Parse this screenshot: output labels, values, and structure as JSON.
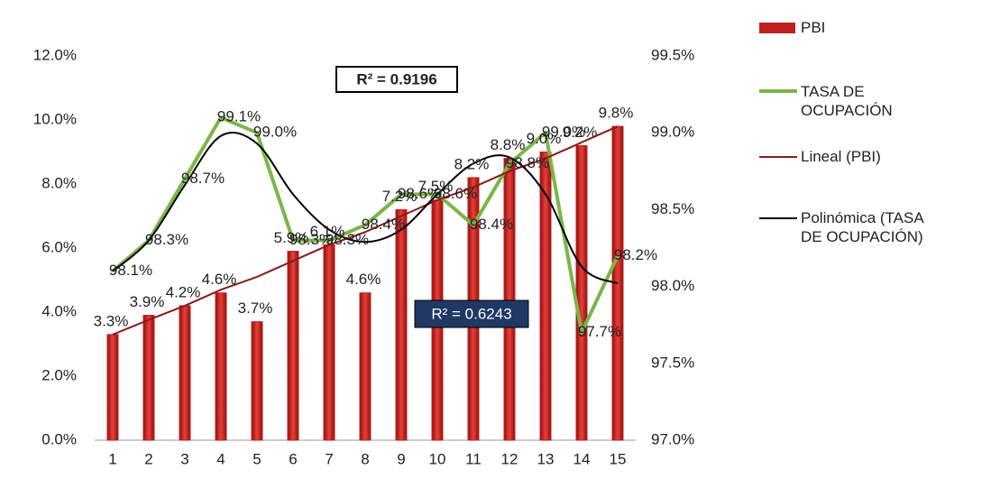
{
  "chart_data": {
    "type": "combo",
    "categories": [
      "1",
      "2",
      "3",
      "4",
      "5",
      "6",
      "7",
      "8",
      "9",
      "10",
      "11",
      "12",
      "13",
      "14",
      "15"
    ],
    "series": [
      {
        "name": "PBI",
        "type": "bar",
        "color": "#c0201e",
        "values": [
          3.3,
          3.9,
          4.2,
          4.6,
          3.7,
          5.9,
          6.1,
          4.6,
          7.2,
          7.5,
          8.2,
          8.8,
          9.0,
          9.2,
          9.8
        ],
        "value_labels": [
          "3.3%",
          "3.9%",
          "4.2%",
          "4.6%",
          "3.7%",
          "5.9%",
          "6.1%",
          "4.6%",
          "7.2%",
          "7.5%",
          "8.2%",
          "8.8%",
          "9.0%",
          "9.2%",
          "9.8%"
        ]
      },
      {
        "name": "TASA DE OCUPACIÓN",
        "type": "line",
        "axis": "y2",
        "color": "#7ab648",
        "values": [
          98.1,
          98.3,
          98.7,
          99.1,
          99.0,
          98.3,
          98.3,
          98.4,
          98.6,
          98.6,
          98.4,
          98.8,
          99.0,
          97.7,
          98.2
        ],
        "value_labels": [
          "98.1%",
          "98.3%",
          "98.7%",
          "99.1%",
          "99.0%",
          "98.3%",
          "98.3%",
          "98.4%",
          "98.6%",
          "98.6%",
          "98.4%",
          "98.8%",
          "99.0%",
          "97.7%",
          "98.2%"
        ]
      },
      {
        "name": "Lineal (PBI)",
        "type": "line",
        "color": "#8b1a1a",
        "values": [
          3.3,
          3.76,
          4.2,
          4.7,
          5.1,
          5.6,
          6.1,
          6.5,
          7.0,
          7.5,
          7.9,
          8.4,
          8.8,
          9.3,
          9.8
        ]
      },
      {
        "name": "Polinómica (TASA DE OCUPACIÓN)",
        "type": "curve",
        "axis": "y2",
        "color": "#000000",
        "values": [
          98.1,
          98.3,
          98.66,
          98.98,
          98.93,
          98.6,
          98.37,
          98.29,
          98.37,
          98.6,
          98.8,
          98.84,
          98.6,
          98.13,
          98.02
        ]
      }
    ],
    "ylim": [
      0,
      12
    ],
    "yticks": [
      {
        "value": 0,
        "label": "0.0%"
      },
      {
        "value": 2,
        "label": "2.0%"
      },
      {
        "value": 4,
        "label": "4.0%"
      },
      {
        "value": 6,
        "label": "6.0%"
      },
      {
        "value": 8,
        "label": "8.0%"
      },
      {
        "value": 10,
        "label": "10.0%"
      },
      {
        "value": 12,
        "label": "12.0%"
      }
    ],
    "y2lim": [
      97.0,
      99.5
    ],
    "y2ticks": [
      {
        "value": 97.0,
        "label": "97.0%"
      },
      {
        "value": 97.5,
        "label": "97.5%"
      },
      {
        "value": 98.0,
        "label": "98.0%"
      },
      {
        "value": 98.5,
        "label": "98.5%"
      },
      {
        "value": 99.0,
        "label": "99.0%"
      },
      {
        "value": 99.5,
        "label": "99.5%"
      }
    ],
    "annotations": [
      "R² = 0.9196",
      "R² = 0.6243"
    ]
  }
}
